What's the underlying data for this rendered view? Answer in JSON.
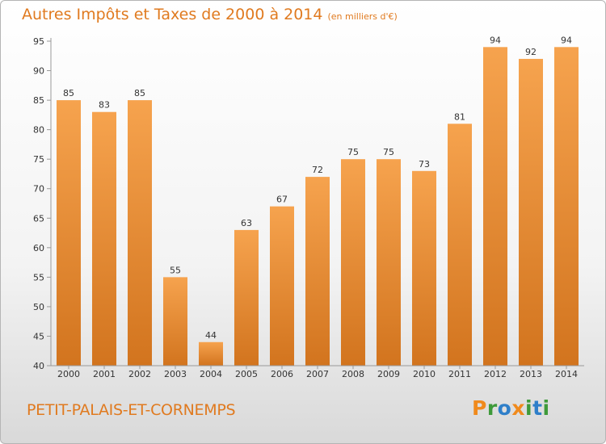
{
  "chart_data": {
    "type": "bar",
    "title": "Autres Impôts et Taxes de 2000 à 2014",
    "unit": "(en milliers d'€)",
    "categories": [
      "2000",
      "2001",
      "2002",
      "2003",
      "2004",
      "2005",
      "2006",
      "2007",
      "2008",
      "2009",
      "2010",
      "2011",
      "2012",
      "2013",
      "2014"
    ],
    "values": [
      85,
      83,
      85,
      55,
      44,
      63,
      67,
      72,
      75,
      75,
      73,
      81,
      94,
      92,
      94
    ],
    "ylim": [
      40,
      95
    ],
    "yticks": [
      40,
      45,
      50,
      55,
      60,
      65,
      70,
      75,
      80,
      85,
      90,
      95
    ],
    "grid": false,
    "bar_color_light": "#f6a34e",
    "bar_color_dark": "#d2741e"
  },
  "commune": "PETIT-PALAIS-ET-CORNEMPS",
  "logo": {
    "text": "Proxiti",
    "letters": [
      {
        "ch": "P",
        "color": "#f08a1c"
      },
      {
        "ch": "r",
        "color": "#3e9a3a"
      },
      {
        "ch": "o",
        "color": "#2f7fc9"
      },
      {
        "ch": "x",
        "color": "#f08a1c"
      },
      {
        "ch": "i",
        "color": "#3e9a3a"
      },
      {
        "ch": "t",
        "color": "#2f7fc9"
      },
      {
        "ch": "i",
        "color": "#3e9a3a"
      }
    ]
  }
}
